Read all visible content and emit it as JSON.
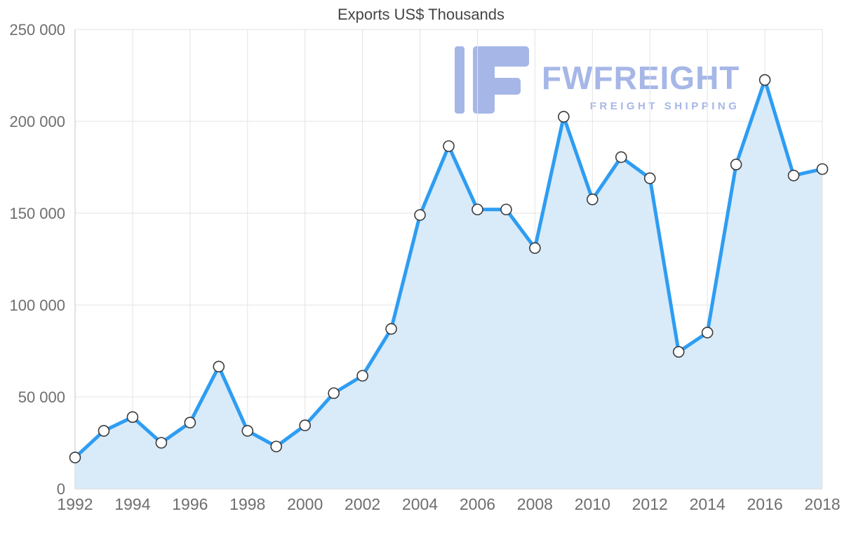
{
  "chart_data": {
    "type": "area",
    "title": "Exports US$ Thousands",
    "x": [
      1992,
      1993,
      1994,
      1995,
      1996,
      1997,
      1998,
      1999,
      2000,
      2001,
      2002,
      2003,
      2004,
      2005,
      2006,
      2007,
      2008,
      2009,
      2010,
      2011,
      2012,
      2013,
      2014,
      2015,
      2016,
      2017,
      2018
    ],
    "series": [
      {
        "name": "Exports US$ Thousands",
        "values": [
          17000,
          31500,
          39000,
          25000,
          36000,
          66500,
          31500,
          23000,
          34500,
          52000,
          61500,
          87000,
          149000,
          186500,
          152000,
          152000,
          131000,
          202500,
          157500,
          180500,
          169000,
          74500,
          85000,
          176500,
          222500,
          170500,
          174000
        ]
      }
    ],
    "ylim": [
      0,
      250000
    ],
    "yticks": [
      0,
      50000,
      100000,
      150000,
      200000,
      250000
    ],
    "ytick_labels": [
      "0",
      "50 000",
      "100 000",
      "150 000",
      "200 000",
      "250 000"
    ],
    "xtick_labels": [
      "1992",
      "1994",
      "1996",
      "1998",
      "2000",
      "2002",
      "2004",
      "2006",
      "2008",
      "2010",
      "2012",
      "2014",
      "2016",
      "2018"
    ],
    "grid": true,
    "legend": "none",
    "line_color": "#2E9DF2",
    "fill_color": "#D9EAF9",
    "marker_fill": "#FFFFFF",
    "marker_stroke": "#3A3A3A"
  },
  "watermark": {
    "brand": "FWFREIGHT",
    "tagline": "FREIGHT SHIPPING",
    "color": "#A6B7E7"
  }
}
